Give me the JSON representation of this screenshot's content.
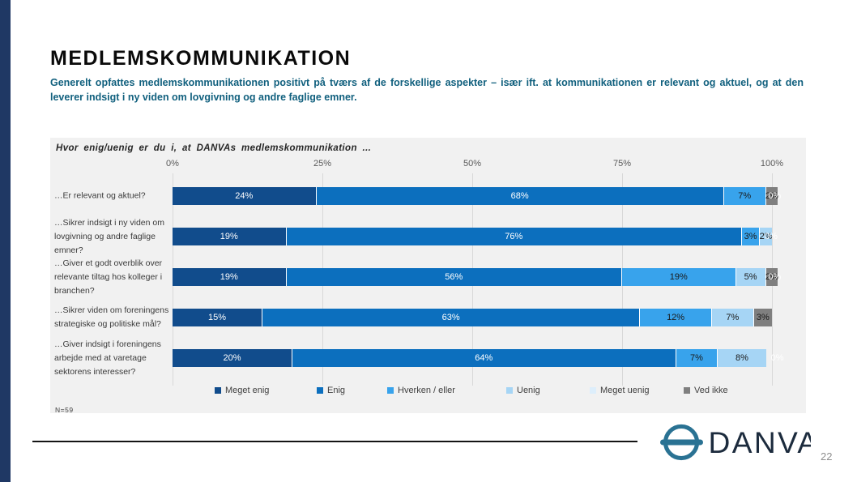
{
  "slide": {
    "title": "MEDLEMSKOMMUNIKATION",
    "subtitle": "Generelt opfattes medlemskommunikationen positivt på tværs af de forskellige aspekter – især ift. at kommunikationen er relevant og aktuel, og at den leverer indsigt i ny viden om lovgivning og andre faglige emner.",
    "page_number": "22",
    "logo_text": "DANVA",
    "stripe_color": "#1F3864",
    "subtitle_color": "#11607E"
  },
  "chart_data": {
    "type": "bar",
    "orientation": "horizontal-stacked",
    "title": "Hvor enig/uenig er du i, at DANVAs medlemskommunikation ...",
    "n_label": "N=59",
    "x_axis": {
      "ticks": [
        "0%",
        "25%",
        "50%",
        "75%",
        "100%"
      ],
      "range": [
        0,
        100
      ],
      "grid": true
    },
    "legend_position": "bottom",
    "categories": [
      "…Er relevant og aktuel?",
      "…Sikrer indsigt i ny viden om lovgivning og andre faglige emner?",
      "…Giver et godt overblik over relevante tiltag hos kolleger i branchen?",
      "…Sikrer viden om foreningens strategiske og politiske mål?",
      "…Giver indsigt i foreningens arbejde med at varetage sektorens interesser?"
    ],
    "series": [
      {
        "name": "Meget enig",
        "color": "#114C8C",
        "label_color": "#ffffff",
        "values": [
          24,
          19,
          19,
          15,
          20
        ]
      },
      {
        "name": "Enig",
        "color": "#0C6FBE",
        "label_color": "#ffffff",
        "values": [
          68,
          76,
          56,
          63,
          64
        ]
      },
      {
        "name": "Hverken / eller",
        "color": "#38A3EC",
        "label_color": "#1a1a1a",
        "values": [
          7,
          3,
          19,
          12,
          7
        ]
      },
      {
        "name": "Uenig",
        "color": "#A6D5F5",
        "label_color": "#1a1a1a",
        "values": [
          0,
          2,
          5,
          7,
          8
        ]
      },
      {
        "name": "Meget uenig",
        "color": "#DDEEFB",
        "label_color": "#1a1a1a",
        "values": [
          0,
          0,
          0,
          0,
          0
        ]
      },
      {
        "name": "Ved ikke",
        "color": "#7F7F7F",
        "label_color": "#1a1a1a",
        "values": [
          2,
          0,
          2,
          3,
          0
        ]
      }
    ],
    "zero_labels": [
      {
        "row": 0,
        "text": "0%"
      },
      {
        "row": 1,
        "text": "0%"
      },
      {
        "row": 2,
        "text": "0%"
      },
      {
        "row": 4,
        "text": "0%"
      }
    ]
  }
}
